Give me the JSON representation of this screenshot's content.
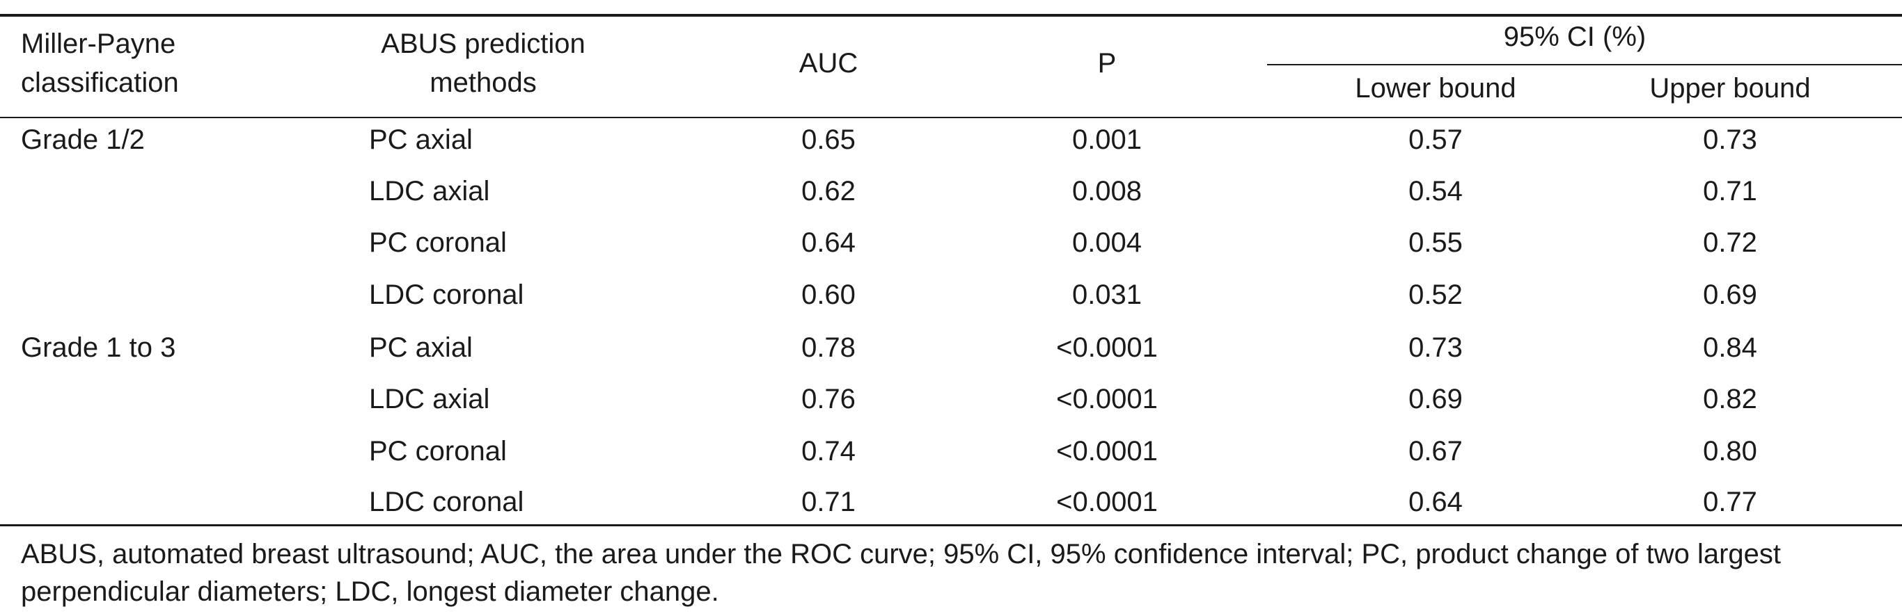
{
  "headers": {
    "miller_payne": "Miller-Payne",
    "classification": "classification",
    "abus_line1": "ABUS prediction",
    "abus_line2": "methods",
    "auc": "AUC",
    "p": "P",
    "ci": "95% CI (%)",
    "lower": "Lower bound",
    "upper": "Upper bound"
  },
  "groups": [
    {
      "label": "Grade 1/2"
    },
    {
      "label": "Grade 1 to 3"
    }
  ],
  "rows": [
    {
      "method": "PC axial",
      "auc": "0.65",
      "p": "0.001",
      "lower": "0.57",
      "upper": "0.73"
    },
    {
      "method": "LDC axial",
      "auc": "0.62",
      "p": "0.008",
      "lower": "0.54",
      "upper": "0.71"
    },
    {
      "method": "PC coronal",
      "auc": "0.64",
      "p": "0.004",
      "lower": "0.55",
      "upper": "0.72"
    },
    {
      "method": "LDC coronal",
      "auc": "0.60",
      "p": "0.031",
      "lower": "0.52",
      "upper": "0.69"
    },
    {
      "method": "PC axial",
      "auc": "0.78",
      "p": "<0.0001",
      "lower": "0.73",
      "upper": "0.84"
    },
    {
      "method": "LDC axial",
      "auc": "0.76",
      "p": "<0.0001",
      "lower": "0.69",
      "upper": "0.82"
    },
    {
      "method": "PC coronal",
      "auc": "0.74",
      "p": "<0.0001",
      "lower": "0.67",
      "upper": "0.80"
    },
    {
      "method": "LDC coronal",
      "auc": "0.71",
      "p": "<0.0001",
      "lower": "0.64",
      "upper": "0.77"
    }
  ],
  "footnote": "ABUS, automated breast ultrasound; AUC, the area under the ROC curve; 95% CI, 95% confidence interval; PC, product change of two largest perpendicular diameters; LDC, longest diameter change."
}
